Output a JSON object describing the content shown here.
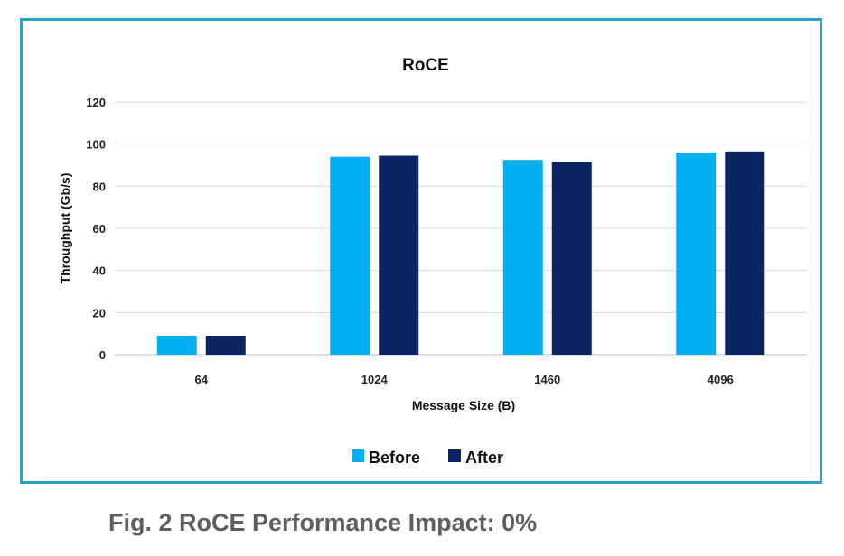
{
  "caption": "Fig. 2 RoCE Performance Impact: 0%",
  "colors": {
    "frame": "#2aa3c3",
    "before": "#00b0f0",
    "after": "#0b2462",
    "grid": "#d9d9d9"
  },
  "chart_data": {
    "type": "bar",
    "title": "RoCE",
    "xlabel": "Message Size (B)",
    "ylabel": "Throughput  (Gb/s)",
    "categories": [
      "64",
      "1024",
      "1460",
      "4096"
    ],
    "series": [
      {
        "name": "Before",
        "color": "#00b0f0",
        "values": [
          9,
          94,
          92.5,
          96
        ]
      },
      {
        "name": "After",
        "color": "#0b2462",
        "values": [
          9,
          94.5,
          91.5,
          96.5
        ]
      }
    ],
    "ylim": [
      0,
      120
    ],
    "yticks": [
      0,
      20,
      40,
      60,
      80,
      100,
      120
    ],
    "grid": true,
    "legend_position": "bottom"
  }
}
